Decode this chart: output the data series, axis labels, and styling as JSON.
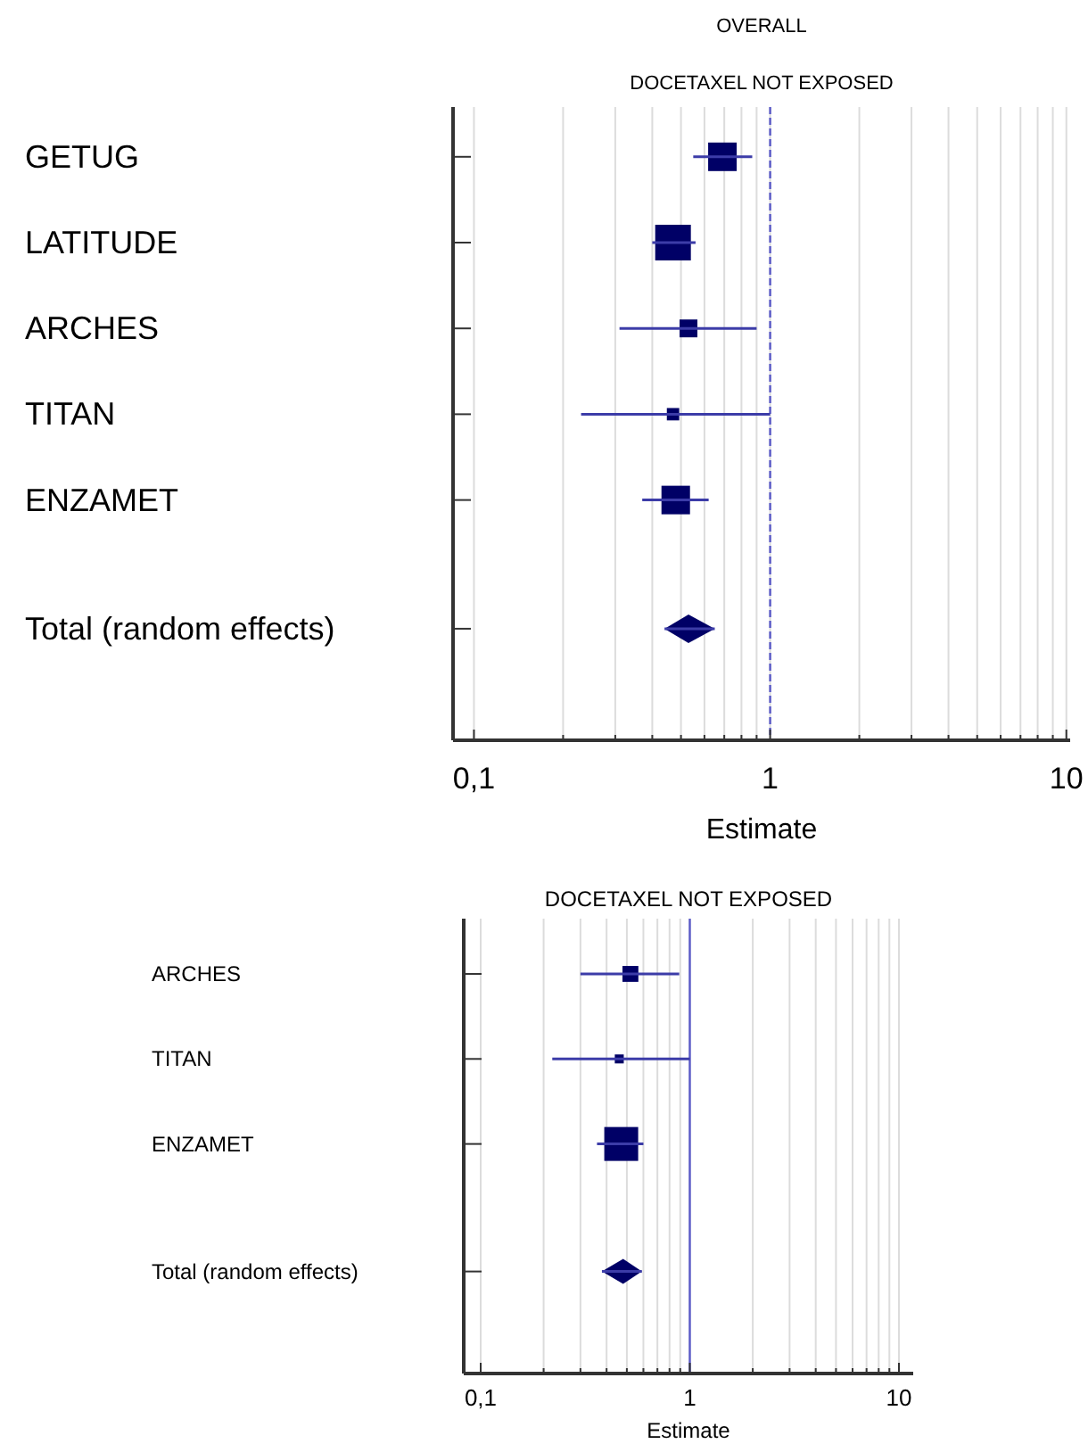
{
  "chart_data": [
    {
      "type": "scatter",
      "title": "OVERALL",
      "subtitle": "DOCETAXEL NOT EXPOSED",
      "xlabel": "Estimate",
      "orientation": "horizontal",
      "log": "x",
      "grid": "x",
      "categories": [
        "GETUG",
        "LATITUDE",
        "ARCHES",
        "TITAN",
        "ENZAMET",
        "Total (random effects)"
      ],
      "xlim": [
        0.085,
        10.3
      ],
      "xticks": [
        {
          "value": 0.1,
          "label": "0,1"
        },
        {
          "value": 0.2,
          "label": null
        },
        {
          "value": 0.3,
          "label": null
        },
        {
          "value": 0.4,
          "label": null
        },
        {
          "value": 0.5,
          "label": null
        },
        {
          "value": 0.6,
          "label": null
        },
        {
          "value": 0.7,
          "label": null
        },
        {
          "value": 0.8,
          "label": null
        },
        {
          "value": 0.9,
          "label": null
        },
        {
          "value": 1,
          "label": "1"
        },
        {
          "value": 2,
          "label": null
        },
        {
          "value": 3,
          "label": null
        },
        {
          "value": 4,
          "label": null
        },
        {
          "value": 5,
          "label": null
        },
        {
          "value": 6,
          "label": null
        },
        {
          "value": 7,
          "label": null
        },
        {
          "value": 8,
          "label": null
        },
        {
          "value": 9,
          "label": null
        },
        {
          "value": 10,
          "label": "10"
        }
      ],
      "ref_lines": [
        {
          "axis": "x",
          "value": 1,
          "color": "#5a5ac8",
          "line_style": "dashed"
        }
      ],
      "series": [
        {
          "type": "bubble",
          "marker": "square",
          "color": "#000066",
          "values": [
            0.69,
            0.47,
            0.53,
            0.47,
            0.48,
            null
          ],
          "errors": [
            [
              0.55,
              0.87
            ],
            [
              0.4,
              0.56
            ],
            [
              0.31,
              0.9
            ],
            [
              0.23,
              1.0
            ],
            [
              0.37,
              0.62
            ],
            null
          ],
          "sizes": [
            0.64,
            1,
            0.25,
            0.12,
            0.64,
            null
          ]
        },
        {
          "marker": "diamond",
          "color": "#000066",
          "values": [
            null,
            null,
            null,
            null,
            null,
            0.53
          ],
          "errors": [
            null,
            null,
            null,
            null,
            null,
            [
              0.44,
              0.65
            ]
          ]
        }
      ]
    },
    {
      "type": "scatter",
      "title": "DOCETAXEL NOT EXPOSED",
      "xlabel": "Estimate",
      "orientation": "horizontal",
      "log": "x",
      "grid": "x",
      "categories": [
        "ARCHES",
        "TITAN",
        "ENZAMET",
        "Total (random effects)"
      ],
      "xlim": [
        0.083,
        11.7
      ],
      "xticks": [
        {
          "value": 0.1,
          "label": "0,1"
        },
        {
          "value": 0.2,
          "label": null
        },
        {
          "value": 0.3,
          "label": null
        },
        {
          "value": 0.4,
          "label": null
        },
        {
          "value": 0.5,
          "label": null
        },
        {
          "value": 0.6,
          "label": null
        },
        {
          "value": 0.7,
          "label": null
        },
        {
          "value": 0.8,
          "label": null
        },
        {
          "value": 0.9,
          "label": null
        },
        {
          "value": 1,
          "label": "1"
        },
        {
          "value": 2,
          "label": null
        },
        {
          "value": 3,
          "label": null
        },
        {
          "value": 4,
          "label": null
        },
        {
          "value": 5,
          "label": null
        },
        {
          "value": 6,
          "label": null
        },
        {
          "value": 7,
          "label": null
        },
        {
          "value": 8,
          "label": null
        },
        {
          "value": 9,
          "label": null
        },
        {
          "value": 10,
          "label": "10"
        }
      ],
      "ref_lines": [
        {
          "axis": "x",
          "value": 1,
          "color": "#5a5ac8",
          "line_style": "solid"
        }
      ],
      "series": [
        {
          "type": "bubble",
          "marker": "square",
          "color": "#000066",
          "values": [
            0.52,
            0.46,
            0.47,
            null
          ],
          "errors": [
            [
              0.3,
              0.89
            ],
            [
              0.22,
              1.0
            ],
            [
              0.36,
              0.6
            ],
            null
          ],
          "sizes": [
            0.22,
            0.07,
            1,
            null
          ]
        },
        {
          "marker": "diamond",
          "color": "#000066",
          "values": [
            null,
            null,
            null,
            0.48
          ],
          "errors": [
            null,
            null,
            null,
            [
              0.38,
              0.59
            ]
          ]
        }
      ]
    }
  ]
}
